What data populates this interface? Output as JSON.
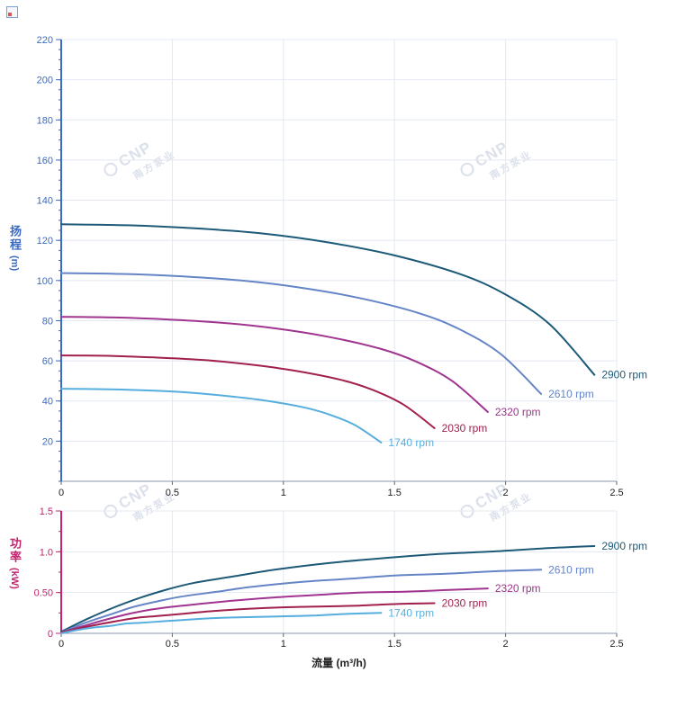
{
  "watermark": {
    "brand": "CNP",
    "brand_cn": "南方泵业"
  },
  "axis_titles": {
    "head_cn": "扬程",
    "head_unit": "(m)",
    "power_cn": "功率",
    "power_unit": "(kW)",
    "flow_label": "流量 (m³/h)"
  },
  "chart_data": [
    {
      "id": "head",
      "type": "line",
      "title": "",
      "xlabel": "",
      "ylabel": "扬程 (m)",
      "xlim": [
        0,
        2.5
      ],
      "ylim": [
        0,
        220
      ],
      "grid": true,
      "legend_position": "curve-ends",
      "axis_color": "#3a6ac4",
      "tick_label_color": "#3a6ac4",
      "x_label_color": "#222222",
      "grid_color": "#e3e8f2",
      "y_minor_step": 5,
      "x_ticks": [
        {
          "v": 0,
          "label": "0"
        },
        {
          "v": 0.5,
          "label": "0.5"
        },
        {
          "v": 1,
          "label": "1"
        },
        {
          "v": 1.5,
          "label": "1.5"
        },
        {
          "v": 2,
          "label": "2"
        },
        {
          "v": 2.5,
          "label": "2.5"
        }
      ],
      "y_ticks": [
        {
          "v": 20,
          "label": "20"
        },
        {
          "v": 40,
          "label": "40"
        },
        {
          "v": 60,
          "label": "60"
        },
        {
          "v": 80,
          "label": "80"
        },
        {
          "v": 100,
          "label": "100"
        },
        {
          "v": 120,
          "label": "120"
        },
        {
          "v": 140,
          "label": "140"
        },
        {
          "v": 160,
          "label": "160"
        },
        {
          "v": 180,
          "label": "180"
        },
        {
          "v": 200,
          "label": "200"
        },
        {
          "v": 220,
          "label": "220"
        }
      ],
      "series": [
        {
          "name": "2900 rpm",
          "color": "#1d5a78",
          "points": [
            [
              0,
              128
            ],
            [
              0.3,
              127.5
            ],
            [
              0.6,
              126
            ],
            [
              0.9,
              123.5
            ],
            [
              1.2,
              119
            ],
            [
              1.5,
              112.5
            ],
            [
              1.8,
              103
            ],
            [
              2.0,
              93
            ],
            [
              2.2,
              78
            ],
            [
              2.4,
              53
            ]
          ]
        },
        {
          "name": "2610 rpm",
          "color": "#6585c6",
          "points": [
            [
              0,
              103.7
            ],
            [
              0.27,
              103.3
            ],
            [
              0.54,
              102.1
            ],
            [
              0.81,
              100.0
            ],
            [
              1.08,
              96.4
            ],
            [
              1.35,
              91.1
            ],
            [
              1.62,
              83.4
            ],
            [
              1.8,
              75.3
            ],
            [
              1.98,
              63.2
            ],
            [
              2.16,
              43.5
            ]
          ]
        },
        {
          "name": "2320 rpm",
          "color": "#a0348f",
          "points": [
            [
              0,
              81.9
            ],
            [
              0.24,
              81.6
            ],
            [
              0.48,
              80.6
            ],
            [
              0.72,
              79.0
            ],
            [
              0.96,
              76.2
            ],
            [
              1.2,
              72.0
            ],
            [
              1.44,
              65.9
            ],
            [
              1.6,
              59.5
            ],
            [
              1.76,
              49.9
            ],
            [
              1.92,
              34.5
            ]
          ]
        },
        {
          "name": "2030 rpm",
          "color": "#a2204e",
          "points": [
            [
              0,
              62.7
            ],
            [
              0.21,
              62.5
            ],
            [
              0.42,
              61.7
            ],
            [
              0.63,
              60.5
            ],
            [
              0.84,
              58.3
            ],
            [
              1.05,
              55.1
            ],
            [
              1.26,
              50.5
            ],
            [
              1.4,
              45.6
            ],
            [
              1.54,
              38.2
            ],
            [
              1.68,
              26.5
            ]
          ]
        },
        {
          "name": "1740 rpm",
          "color": "#55aede",
          "points": [
            [
              0,
              46.1
            ],
            [
              0.18,
              45.9
            ],
            [
              0.36,
              45.4
            ],
            [
              0.54,
              44.5
            ],
            [
              0.72,
              42.8
            ],
            [
              0.9,
              40.5
            ],
            [
              1.08,
              37.1
            ],
            [
              1.2,
              33.5
            ],
            [
              1.32,
              28.1
            ],
            [
              1.44,
              19.3
            ]
          ]
        }
      ]
    },
    {
      "id": "power",
      "type": "line",
      "title": "",
      "xlabel": "流量 (m³/h)",
      "ylabel": "功率 (kW)",
      "xlim": [
        0,
        2.5
      ],
      "ylim": [
        0,
        1.5
      ],
      "grid": true,
      "legend_position": "curve-ends",
      "axis_color": "#c2256d",
      "tick_label_color": "#c2256d",
      "x_label_color": "#222222",
      "grid_color": "#e3e8f2",
      "y_minor_step": 0.25,
      "x_ticks": [
        {
          "v": 0,
          "label": "0"
        },
        {
          "v": 0.5,
          "label": "0.5"
        },
        {
          "v": 1,
          "label": "1"
        },
        {
          "v": 1.5,
          "label": "1.5"
        },
        {
          "v": 2,
          "label": "2"
        },
        {
          "v": 2.5,
          "label": "2.5"
        }
      ],
      "y_ticks": [
        {
          "v": 0,
          "label": "0"
        },
        {
          "v": 0.5,
          "label": "0.50"
        },
        {
          "v": 1,
          "label": "1.0"
        },
        {
          "v": 1.5,
          "label": "1.5"
        }
      ],
      "series": [
        {
          "name": "2900 rpm",
          "color": "#1d5a78",
          "points": [
            [
              0,
              0.02
            ],
            [
              0.12,
              0.18
            ],
            [
              0.24,
              0.32
            ],
            [
              0.36,
              0.44
            ],
            [
              0.48,
              0.54
            ],
            [
              0.6,
              0.62
            ],
            [
              0.78,
              0.7
            ],
            [
              0.96,
              0.78
            ],
            [
              1.2,
              0.86
            ],
            [
              1.44,
              0.92
            ],
            [
              1.68,
              0.97
            ],
            [
              1.92,
              1.0
            ],
            [
              2.16,
              1.04
            ],
            [
              2.4,
              1.07
            ]
          ]
        },
        {
          "name": "2610 rpm",
          "color": "#6585c6",
          "points": [
            [
              0,
              0.01
            ],
            [
              0.11,
              0.13
            ],
            [
              0.22,
              0.23
            ],
            [
              0.32,
              0.32
            ],
            [
              0.43,
              0.39
            ],
            [
              0.54,
              0.45
            ],
            [
              0.7,
              0.51
            ],
            [
              0.86,
              0.57
            ],
            [
              1.08,
              0.63
            ],
            [
              1.3,
              0.67
            ],
            [
              1.51,
              0.71
            ],
            [
              1.73,
              0.73
            ],
            [
              1.94,
              0.76
            ],
            [
              2.16,
              0.78
            ]
          ]
        },
        {
          "name": "2320 rpm",
          "color": "#a0348f",
          "points": [
            [
              0,
              0.01
            ],
            [
              0.1,
              0.09
            ],
            [
              0.19,
              0.16
            ],
            [
              0.29,
              0.23
            ],
            [
              0.38,
              0.28
            ],
            [
              0.48,
              0.32
            ],
            [
              0.62,
              0.36
            ],
            [
              0.77,
              0.4
            ],
            [
              0.96,
              0.44
            ],
            [
              1.15,
              0.47
            ],
            [
              1.34,
              0.5
            ],
            [
              1.54,
              0.51
            ],
            [
              1.73,
              0.53
            ],
            [
              1.92,
              0.55
            ]
          ]
        },
        {
          "name": "2030 rpm",
          "color": "#a2204e",
          "points": [
            [
              0,
              0.01
            ],
            [
              0.08,
              0.06
            ],
            [
              0.17,
              0.11
            ],
            [
              0.25,
              0.15
            ],
            [
              0.34,
              0.19
            ],
            [
              0.42,
              0.21
            ],
            [
              0.55,
              0.24
            ],
            [
              0.67,
              0.27
            ],
            [
              0.84,
              0.3
            ],
            [
              1.01,
              0.32
            ],
            [
              1.18,
              0.33
            ],
            [
              1.34,
              0.34
            ],
            [
              1.51,
              0.36
            ],
            [
              1.68,
              0.37
            ]
          ]
        },
        {
          "name": "1740 rpm",
          "color": "#55aede",
          "points": [
            [
              0,
              0.0
            ],
            [
              0.07,
              0.04
            ],
            [
              0.14,
              0.07
            ],
            [
              0.22,
              0.09
            ],
            [
              0.29,
              0.12
            ],
            [
              0.36,
              0.13
            ],
            [
              0.47,
              0.15
            ],
            [
              0.58,
              0.17
            ],
            [
              0.72,
              0.19
            ],
            [
              0.86,
              0.2
            ],
            [
              1.01,
              0.21
            ],
            [
              1.15,
              0.22
            ],
            [
              1.3,
              0.24
            ],
            [
              1.44,
              0.25
            ]
          ]
        }
      ]
    }
  ]
}
